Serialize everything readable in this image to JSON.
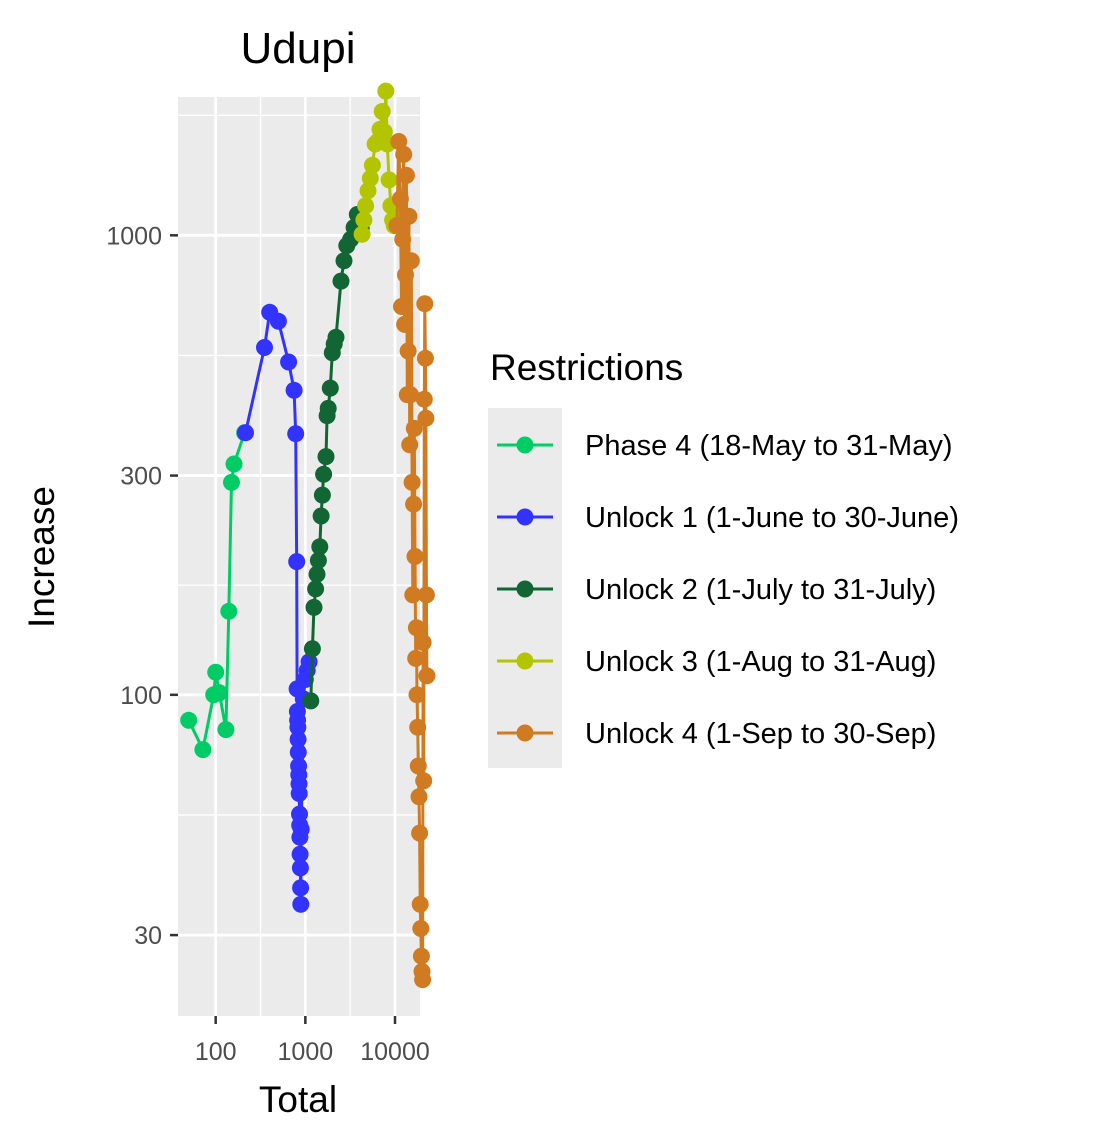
{
  "chart_data": {
    "type": "line",
    "title": "Udupi",
    "xlabel": "Total",
    "ylabel": "Increase",
    "x_scale": "log",
    "y_scale": "log",
    "xlim": [
      38,
      19000
    ],
    "ylim": [
      20,
      2000
    ],
    "x_ticks": [
      {
        "value": 100,
        "label": "100"
      },
      {
        "value": 1000,
        "label": "1000"
      },
      {
        "value": 10000,
        "label": "10000"
      }
    ],
    "y_ticks": [
      {
        "value": 30,
        "label": "30"
      },
      {
        "value": 100,
        "label": "100"
      },
      {
        "value": 300,
        "label": "300"
      },
      {
        "value": 1000,
        "label": "1000"
      }
    ],
    "grid": true,
    "panel_background": "#ebebeb",
    "legend": {
      "title": "Restrictions",
      "position": "right"
    },
    "series": [
      {
        "name": "Phase 4 (18-May to 31-May)",
        "color": "#00cc66",
        "points": [
          [
            50,
            88
          ],
          [
            72,
            76
          ],
          [
            95,
            100
          ],
          [
            100,
            112
          ],
          [
            110,
            101
          ],
          [
            130,
            84
          ],
          [
            140,
            152
          ],
          [
            150,
            290
          ],
          [
            160,
            318
          ],
          [
            210,
            372
          ]
        ]
      },
      {
        "name": "Unlock 1 (1-June to 30-June)",
        "color": "#3333ff",
        "points": [
          [
            215,
            372
          ],
          [
            350,
            570
          ],
          [
            400,
            680
          ],
          [
            500,
            650
          ],
          [
            650,
            530
          ],
          [
            750,
            460
          ],
          [
            780,
            370
          ],
          [
            800,
            195
          ],
          [
            810,
            103
          ],
          [
            815,
            92
          ],
          [
            820,
            88
          ],
          [
            825,
            85
          ],
          [
            830,
            80
          ],
          [
            835,
            75
          ],
          [
            840,
            70
          ],
          [
            845,
            67
          ],
          [
            850,
            64
          ],
          [
            855,
            61
          ],
          [
            860,
            55
          ],
          [
            865,
            52
          ],
          [
            870,
            49
          ],
          [
            875,
            45
          ],
          [
            880,
            42
          ],
          [
            885,
            38
          ],
          [
            890,
            35
          ],
          [
            900,
            51
          ],
          [
            950,
            98
          ],
          [
            1000,
            108
          ],
          [
            1050,
            113
          ],
          [
            1100,
            118
          ]
        ]
      },
      {
        "name": "Unlock 2 (1-July to 31-July)",
        "color": "#116633",
        "points": [
          [
            1150,
            97
          ],
          [
            1200,
            126
          ],
          [
            1250,
            155
          ],
          [
            1300,
            170
          ],
          [
            1350,
            183
          ],
          [
            1400,
            196
          ],
          [
            1450,
            210
          ],
          [
            1500,
            245
          ],
          [
            1550,
            272
          ],
          [
            1600,
            302
          ],
          [
            1700,
            330
          ],
          [
            1750,
            405
          ],
          [
            1800,
            420
          ],
          [
            1900,
            465
          ],
          [
            2000,
            555
          ],
          [
            2100,
            580
          ],
          [
            2200,
            600
          ],
          [
            2500,
            795
          ],
          [
            2700,
            880
          ],
          [
            2900,
            950
          ],
          [
            3200,
            980
          ],
          [
            3500,
            1040
          ],
          [
            3800,
            1110
          ],
          [
            4200,
            1035
          ]
        ]
      },
      {
        "name": "Unlock 3 (1-Aug to 31-Aug)",
        "color": "#b3c400",
        "points": [
          [
            4300,
            1005
          ],
          [
            4500,
            1080
          ],
          [
            4700,
            1160
          ],
          [
            5000,
            1250
          ],
          [
            5300,
            1330
          ],
          [
            5600,
            1420
          ],
          [
            6000,
            1580
          ],
          [
            6400,
            1600
          ],
          [
            6800,
            1700
          ],
          [
            7200,
            1860
          ],
          [
            7600,
            1680
          ],
          [
            7900,
            2060
          ],
          [
            8200,
            1580
          ],
          [
            8600,
            1320
          ],
          [
            9000,
            1160
          ],
          [
            9400,
            1080
          ],
          [
            9800,
            1050
          ],
          [
            10200,
            1140
          ]
        ]
      },
      {
        "name": "Unlock 4 (1-Sep to 30-Sep)",
        "color": "#d07a22",
        "points": [
          [
            10500,
            1050
          ],
          [
            11000,
            1600
          ],
          [
            11500,
            1200
          ],
          [
            11800,
            700
          ],
          [
            12200,
            980
          ],
          [
            12500,
            1500
          ],
          [
            12800,
            640
          ],
          [
            13100,
            820
          ],
          [
            13400,
            1350
          ],
          [
            13700,
            450
          ],
          [
            14000,
            560
          ],
          [
            14300,
            1100
          ],
          [
            14600,
            350
          ],
          [
            14900,
            450
          ],
          [
            15200,
            880
          ],
          [
            15500,
            290
          ],
          [
            15800,
            165
          ],
          [
            16100,
            260
          ],
          [
            16400,
            380
          ],
          [
            16700,
            200
          ],
          [
            17000,
            120
          ],
          [
            17300,
            140
          ],
          [
            17600,
            100
          ],
          [
            17900,
            85
          ],
          [
            18200,
            70
          ],
          [
            18500,
            60
          ],
          [
            18800,
            50
          ],
          [
            19100,
            35
          ],
          [
            19400,
            31
          ],
          [
            19700,
            27
          ],
          [
            20000,
            25
          ],
          [
            20300,
            24
          ],
          [
            20600,
            130
          ],
          [
            20900,
            65
          ],
          [
            21200,
            440
          ],
          [
            21500,
            710
          ],
          [
            21800,
            540
          ],
          [
            22100,
            400
          ],
          [
            22400,
            165
          ],
          [
            22700,
            110
          ]
        ]
      }
    ]
  }
}
